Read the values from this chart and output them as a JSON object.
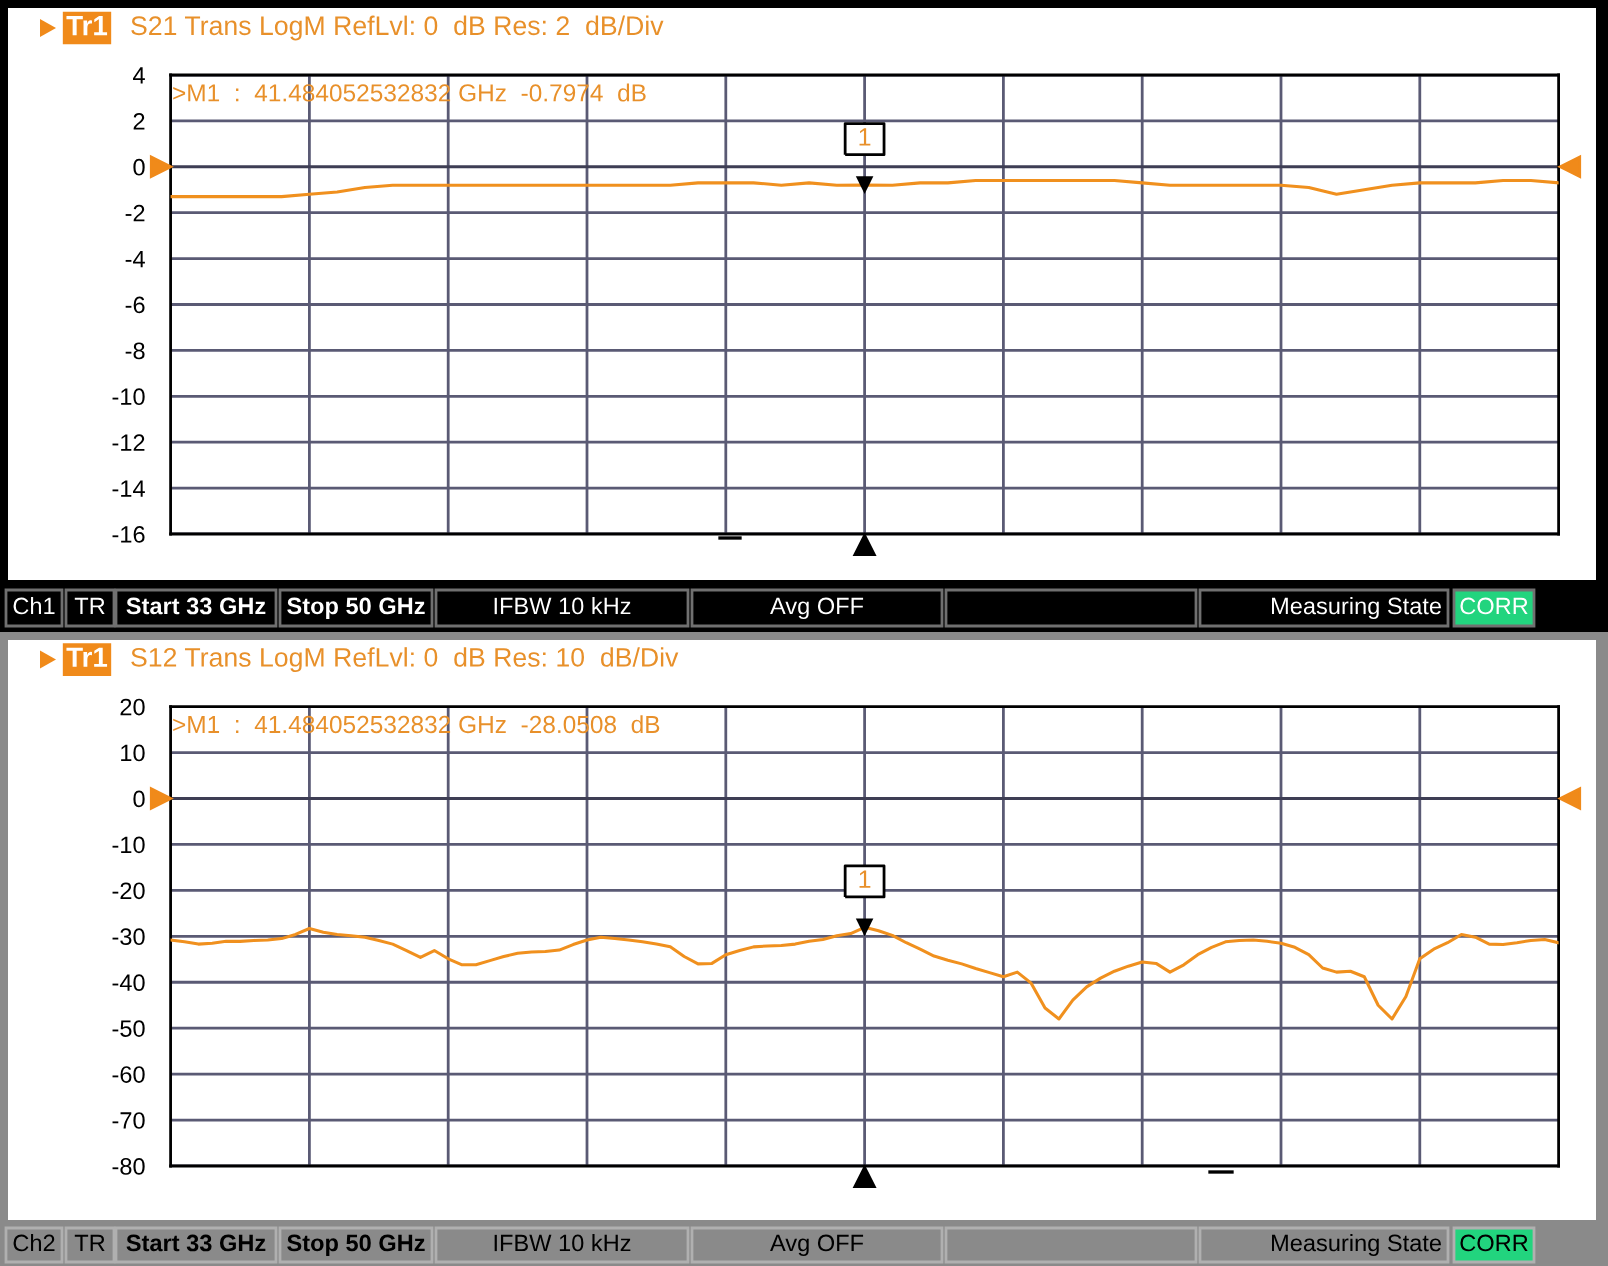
{
  "chart_data": [
    {
      "type": "line",
      "title": "S21 Trans LogM RefLvl: 0  dB Res: 2  dB/Div",
      "categories": [
        null,
        null,
        null,
        null,
        null,
        null,
        null,
        null,
        null,
        null,
        null,
        null,
        null,
        null,
        null,
        null,
        null,
        null,
        null,
        null,
        null,
        null,
        null,
        null,
        null,
        null,
        null,
        null,
        null,
        null,
        null,
        null,
        null,
        null,
        null,
        null,
        null,
        null,
        null,
        null,
        null,
        null,
        null,
        null,
        null,
        null,
        null,
        null,
        null,
        null,
        null
      ],
      "series": [
        {
          "color": "#f0901e",
          "values": [
            -1.3,
            -1.3,
            -1.3,
            -1.3,
            -1.3,
            -1.2,
            -1.1,
            -0.9,
            -0.8,
            -0.8,
            -0.8,
            -0.8,
            -0.8,
            -0.8,
            -0.8,
            -0.8,
            -0.8,
            -0.8,
            -0.8,
            -0.7,
            -0.7,
            -0.7,
            -0.8,
            -0.7,
            -0.8,
            -0.7974,
            -0.8,
            -0.7,
            -0.7,
            -0.6,
            -0.6,
            -0.6,
            -0.6,
            -0.6,
            -0.6,
            -0.7,
            -0.8,
            -0.8,
            -0.8,
            -0.8,
            -0.8,
            -0.9,
            -1.2,
            -1.0,
            -0.8,
            -0.7,
            -0.7,
            -0.7,
            -0.6,
            -0.6,
            -0.7
          ]
        },
        {
          "type": "scatter",
          "marker": "triangle",
          "color": "#000000",
          "values": [
            null,
            null,
            null,
            null,
            null,
            null,
            null,
            null,
            null,
            null,
            null,
            null,
            null,
            null,
            null,
            null,
            null,
            null,
            null,
            null,
            null,
            null,
            null,
            null,
            null,
            -0.7974,
            null,
            null,
            null,
            null,
            null,
            null,
            null,
            null,
            null,
            null,
            null,
            null,
            null,
            null,
            null,
            null,
            null,
            null,
            null,
            null,
            null,
            null,
            null,
            null,
            null
          ]
        }
      ],
      "ylim": [
        -16,
        4
      ],
      "yticks": [
        -16,
        -14,
        -12,
        -10,
        -8,
        -6,
        -4,
        -2,
        0,
        2,
        4
      ],
      "grid": true,
      "tick_labels": "y",
      "ref_lines": [
        {
          "axis": "y",
          "value": 0,
          "color": "#3e3e54"
        }
      ],
      "annotations": [
        "Tr1",
        ">M1  :  41.484052532832 GHz  -0.7974  dB",
        {
          "text": "1",
          "y": -0.7974
        },
        "Ch1",
        "TR",
        "Start 33 GHz",
        "Stop 50 GHz",
        "IFBW 10 kHz",
        "Avg OFF",
        "Measuring State",
        "CORR"
      ]
    },
    {
      "type": "line",
      "title": "S12 Trans LogM RefLvl: 0  dB Res: 10  dB/Div",
      "categories": [
        null,
        null,
        null,
        null,
        null,
        null,
        null,
        null,
        null,
        null,
        null,
        null,
        null,
        null,
        null,
        null,
        null,
        null,
        null,
        null,
        null,
        null,
        null,
        null,
        null,
        null,
        null,
        null,
        null,
        null,
        null,
        null,
        null,
        null,
        null,
        null,
        null,
        null,
        null,
        null,
        null,
        null,
        null,
        null,
        null,
        null,
        null,
        null,
        null,
        null,
        null,
        null,
        null,
        null,
        null,
        null,
        null,
        null,
        null,
        null,
        null,
        null,
        null,
        null,
        null,
        null,
        null,
        null,
        null,
        null,
        null,
        null,
        null,
        null,
        null,
        null,
        null,
        null,
        null,
        null,
        null,
        null,
        null,
        null,
        null,
        null,
        null,
        null,
        null,
        null,
        null,
        null,
        null,
        null,
        null,
        null,
        null,
        null,
        null,
        null,
        null
      ],
      "series": [
        {
          "color": "#f0901e",
          "values": [
            -30.8,
            -31.2,
            -31.7,
            -31.5,
            -31.1,
            -31.1,
            -30.9,
            -30.8,
            -30.5,
            -29.6,
            -28.3,
            -29.1,
            -29.6,
            -29.9,
            -30.2,
            -30.9,
            -31.7,
            -33.1,
            -34.6,
            -33.1,
            -34.9,
            -36.2,
            -36.2,
            -35.3,
            -34.4,
            -33.7,
            -33.4,
            -33.3,
            -33.0,
            -31.8,
            -30.8,
            -30.2,
            -30.5,
            -30.8,
            -31.2,
            -31.7,
            -32.3,
            -34.4,
            -36.0,
            -35.9,
            -34.0,
            -33.1,
            -32.3,
            -32.1,
            -32.0,
            -31.7,
            -31.1,
            -30.7,
            -29.9,
            -29.4,
            -28.0508,
            -28.8,
            -29.8,
            -31.4,
            -32.8,
            -34.3,
            -35.2,
            -36.0,
            -37.0,
            -37.9,
            -38.8,
            -37.8,
            -40.2,
            -45.6,
            -48.0,
            -43.9,
            -41.0,
            -39.1,
            -37.6,
            -36.5,
            -35.6,
            -35.9,
            -37.8,
            -36.2,
            -34.0,
            -32.4,
            -31.2,
            -30.9,
            -30.8,
            -31.1,
            -31.5,
            -32.4,
            -34.0,
            -36.9,
            -37.8,
            -37.6,
            -38.8,
            -45.0,
            -48.0,
            -43.1,
            -34.9,
            -32.8,
            -31.4,
            -29.6,
            -30.2,
            -31.7,
            -31.8,
            -31.4,
            -30.9,
            -30.7,
            -31.4
          ]
        },
        {
          "type": "scatter",
          "marker": "triangle",
          "color": "#000000",
          "values": [
            null,
            null,
            null,
            null,
            null,
            null,
            null,
            null,
            null,
            null,
            null,
            null,
            null,
            null,
            null,
            null,
            null,
            null,
            null,
            null,
            null,
            null,
            null,
            null,
            null,
            null,
            null,
            null,
            null,
            null,
            null,
            null,
            null,
            null,
            null,
            null,
            null,
            null,
            null,
            null,
            null,
            null,
            null,
            null,
            null,
            null,
            null,
            null,
            null,
            null,
            -28.0508,
            null,
            null,
            null,
            null,
            null,
            null,
            null,
            null,
            null,
            null,
            null,
            null,
            null,
            null,
            null,
            null,
            null,
            null,
            null,
            null,
            null,
            null,
            null,
            null,
            null,
            null,
            null,
            null,
            null,
            null,
            null,
            null,
            null,
            null,
            null,
            null,
            null,
            null,
            null,
            null,
            null,
            null,
            null,
            null,
            null,
            null,
            null,
            null,
            null,
            null
          ]
        }
      ],
      "ylim": [
        -80,
        20
      ],
      "yticks": [
        -80,
        -70,
        -60,
        -50,
        -40,
        -30,
        -20,
        -10,
        0,
        10,
        20
      ],
      "grid": true,
      "tick_labels": "y",
      "ref_lines": [
        {
          "axis": "y",
          "value": 0,
          "color": "#3e3e54"
        }
      ],
      "annotations": [
        "Tr1",
        ">M1  :  41.484052532832 GHz  -28.0508  dB",
        {
          "text": "1",
          "y": -28.0508
        },
        "Ch2",
        "TR",
        "Start 33 GHz",
        "Stop 50 GHz",
        "IFBW 10 kHz",
        "Avg OFF",
        "Measuring State",
        "CORR"
      ]
    }
  ]
}
